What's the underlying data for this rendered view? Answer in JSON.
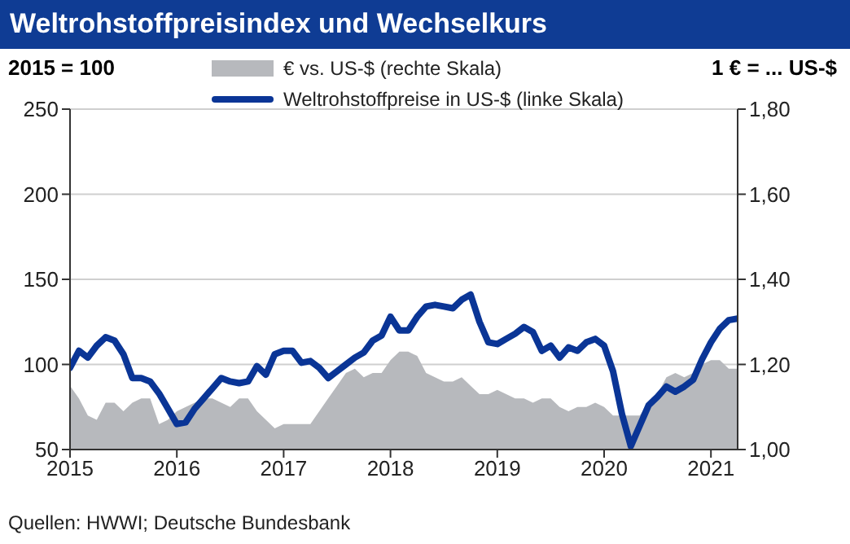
{
  "chart_data": {
    "type": "line",
    "title": "Weltrohstoffpreisindex und Wechselkurs",
    "ylabel": "2015 = 100",
    "y2label": "1 € = ... US-$",
    "x": [
      "2015-01",
      "2015-02",
      "2015-03",
      "2015-04",
      "2015-05",
      "2015-06",
      "2015-07",
      "2015-08",
      "2015-09",
      "2015-10",
      "2015-11",
      "2015-12",
      "2016-01",
      "2016-02",
      "2016-03",
      "2016-04",
      "2016-05",
      "2016-06",
      "2016-07",
      "2016-08",
      "2016-09",
      "2016-10",
      "2016-11",
      "2016-12",
      "2017-01",
      "2017-02",
      "2017-03",
      "2017-04",
      "2017-05",
      "2017-06",
      "2017-07",
      "2017-08",
      "2017-09",
      "2017-10",
      "2017-11",
      "2017-12",
      "2018-01",
      "2018-02",
      "2018-03",
      "2018-04",
      "2018-05",
      "2018-06",
      "2018-07",
      "2018-08",
      "2018-09",
      "2018-10",
      "2018-11",
      "2018-12",
      "2019-01",
      "2019-02",
      "2019-03",
      "2019-04",
      "2019-05",
      "2019-06",
      "2019-07",
      "2019-08",
      "2019-09",
      "2019-10",
      "2019-11",
      "2019-12",
      "2020-01",
      "2020-02",
      "2020-03",
      "2020-04",
      "2020-05",
      "2020-06",
      "2020-07",
      "2020-08",
      "2020-09",
      "2020-10",
      "2020-11",
      "2020-12",
      "2021-01",
      "2021-02",
      "2021-03",
      "2021-04"
    ],
    "series": [
      {
        "name": "€ vs. US-$ (rechte Skala)",
        "type": "area",
        "axis": "y2",
        "color": "#b7b9bd",
        "values": [
          1.15,
          1.12,
          1.08,
          1.07,
          1.11,
          1.11,
          1.09,
          1.11,
          1.12,
          1.12,
          1.06,
          1.07,
          1.09,
          1.1,
          1.11,
          1.12,
          1.12,
          1.11,
          1.1,
          1.12,
          1.12,
          1.09,
          1.07,
          1.05,
          1.06,
          1.06,
          1.06,
          1.06,
          1.09,
          1.12,
          1.15,
          1.18,
          1.19,
          1.17,
          1.18,
          1.18,
          1.21,
          1.23,
          1.23,
          1.22,
          1.18,
          1.17,
          1.16,
          1.16,
          1.17,
          1.15,
          1.13,
          1.13,
          1.14,
          1.13,
          1.12,
          1.12,
          1.11,
          1.12,
          1.12,
          1.1,
          1.09,
          1.1,
          1.1,
          1.11,
          1.1,
          1.08,
          1.08,
          1.08,
          1.08,
          1.11,
          1.13,
          1.17,
          1.18,
          1.17,
          1.18,
          1.2,
          1.21,
          1.21,
          1.19,
          1.19
        ]
      },
      {
        "name": "Weltrohstoffpreise in US-$ (linke Skala)",
        "color": "#0a3596",
        "values": [
          98,
          108,
          104,
          111,
          116,
          114,
          106,
          92,
          92,
          90,
          83,
          74,
          65,
          66,
          74,
          80,
          86,
          92,
          90,
          89,
          90,
          99,
          94,
          106,
          108,
          108,
          101,
          102,
          98,
          92,
          96,
          100,
          104,
          107,
          114,
          117,
          128,
          120,
          120,
          128,
          134,
          135,
          134,
          133,
          138,
          141,
          125,
          113,
          112,
          115,
          118,
          122,
          119,
          108,
          111,
          104,
          110,
          108,
          113,
          115,
          111,
          96,
          71,
          52,
          64,
          76,
          81,
          87,
          84,
          87,
          91,
          103,
          113,
          121,
          126,
          127
        ]
      }
    ],
    "xlim": [
      "2015-01",
      "2021-04"
    ],
    "xticks": [
      "2015",
      "2016",
      "2017",
      "2018",
      "2019",
      "2020",
      "2021"
    ],
    "ylim": [
      50,
      250
    ],
    "yticks": [
      50,
      100,
      150,
      200,
      250
    ],
    "y2lim": [
      1.0,
      1.8
    ],
    "y2ticks": [
      {
        "value": 1.0,
        "label": "1,00"
      },
      {
        "value": 1.2,
        "label": "1,20"
      },
      {
        "value": 1.4,
        "label": "1,40"
      },
      {
        "value": 1.6,
        "label": "1,60"
      },
      {
        "value": 1.8,
        "label": "1,80"
      }
    ],
    "grid": "y",
    "legend": "top",
    "annotations": [
      "Quellen: HWWI; Deutsche Bundesbank"
    ]
  }
}
